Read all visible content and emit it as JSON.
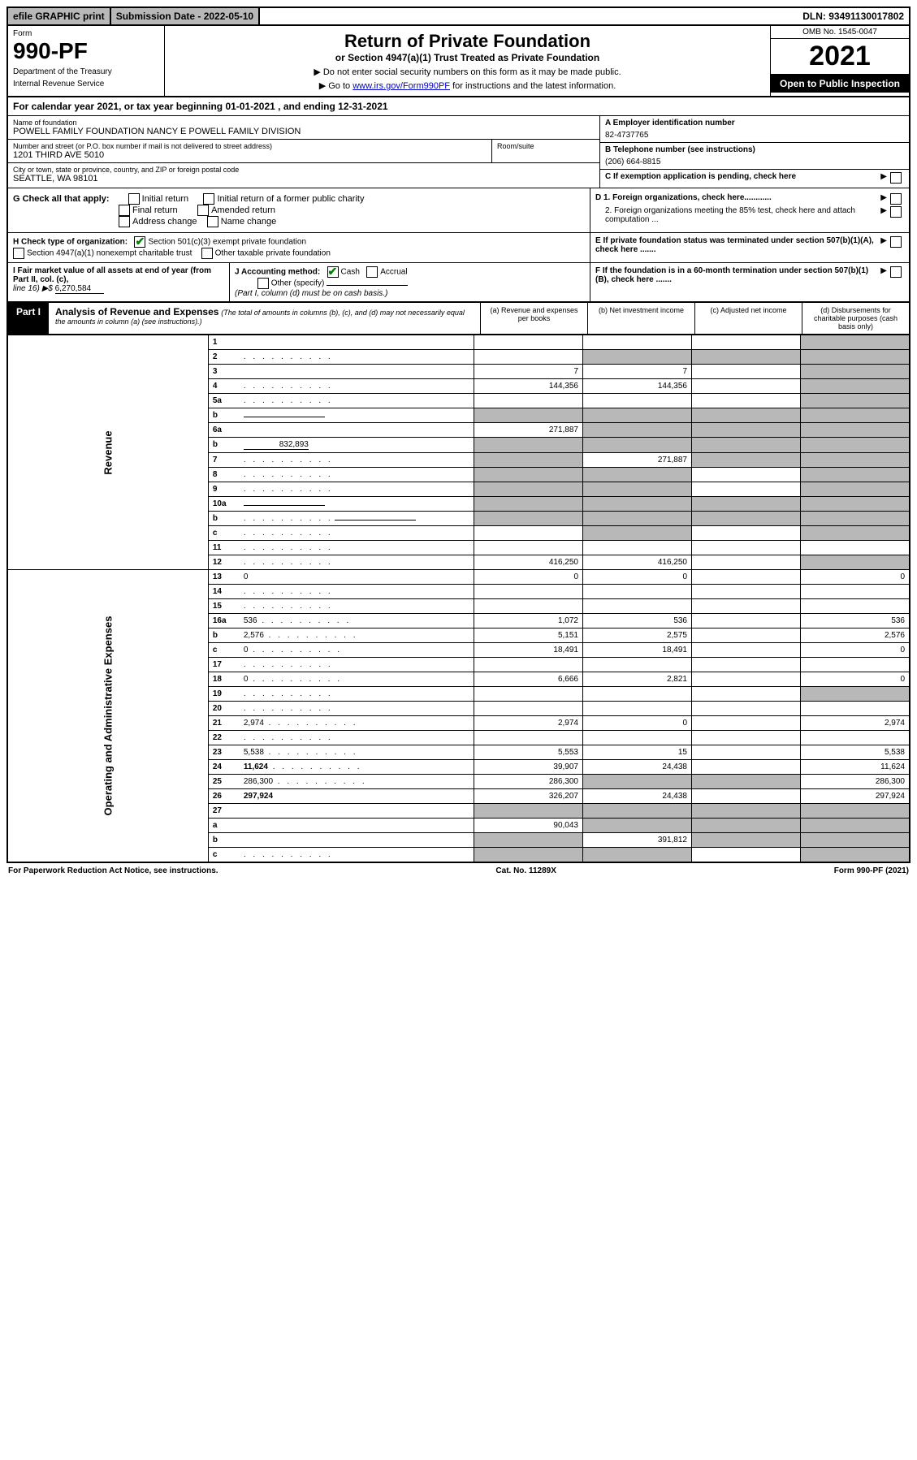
{
  "top": {
    "efile": "efile GRAPHIC print",
    "submission": "Submission Date - 2022-05-10",
    "dln": "DLN: 93491130017802"
  },
  "header": {
    "form_label": "Form",
    "form_number": "990-PF",
    "dept1": "Department of the Treasury",
    "dept2": "Internal Revenue Service",
    "title": "Return of Private Foundation",
    "subtitle": "or Section 4947(a)(1) Trust Treated as Private Foundation",
    "inst1": "▶ Do not enter social security numbers on this form as it may be made public.",
    "inst2_pre": "▶ Go to ",
    "inst2_link": "www.irs.gov/Form990PF",
    "inst2_post": " for instructions and the latest information.",
    "omb": "OMB No. 1545-0047",
    "year": "2021",
    "open_public": "Open to Public Inspection"
  },
  "cal_year": "For calendar year 2021, or tax year beginning 01-01-2021                              , and ending 12-31-2021",
  "entity": {
    "name_label": "Name of foundation",
    "name": "POWELL FAMILY FOUNDATION NANCY E POWELL FAMILY DIVISION",
    "addr_label": "Number and street (or P.O. box number if mail is not delivered to street address)",
    "addr": "1201 THIRD AVE 5010",
    "room_label": "Room/suite",
    "city_label": "City or town, state or province, country, and ZIP or foreign postal code",
    "city": "SEATTLE, WA  98101",
    "ein_label": "A Employer identification number",
    "ein": "82-4737765",
    "phone_label": "B Telephone number (see instructions)",
    "phone": "(206) 664-8815",
    "c_label": "C If exemption application is pending, check here"
  },
  "g": {
    "label": "G Check all that apply:",
    "opts": [
      "Initial return",
      "Initial return of a former public charity",
      "Final return",
      "Amended return",
      "Address change",
      "Name change"
    ]
  },
  "d": {
    "d1": "D 1. Foreign organizations, check here............",
    "d2": "2. Foreign organizations meeting the 85% test, check here and attach computation ...",
    "e": "E  If private foundation status was terminated under section 507(b)(1)(A), check here .......",
    "f": "F  If the foundation is in a 60-month termination under section 507(b)(1)(B), check here ......."
  },
  "h": {
    "label": "H Check type of organization:",
    "opt1": "Section 501(c)(3) exempt private foundation",
    "opt2": "Section 4947(a)(1) nonexempt charitable trust",
    "opt3": "Other taxable private foundation"
  },
  "i": {
    "label": "I Fair market value of all assets at end of year (from Part II, col. (c),",
    "line": "line 16) ▶$",
    "value": "6,270,584"
  },
  "j": {
    "label": "J Accounting method:",
    "cash": "Cash",
    "accrual": "Accrual",
    "other": "Other (specify)",
    "note": "(Part I, column (d) must be on cash basis.)"
  },
  "part1": {
    "label": "Part I",
    "title": "Analysis of Revenue and Expenses",
    "note": "(The total of amounts in columns (b), (c), and (d) may not necessarily equal the amounts in column (a) (see instructions).)",
    "col_a": "(a)   Revenue and expenses per books",
    "col_b": "(b)   Net investment income",
    "col_c": "(c)   Adjusted net income",
    "col_d": "(d)   Disbursements for charitable purposes (cash basis only)"
  },
  "side_labels": {
    "revenue": "Revenue",
    "opex": "Operating and Administrative Expenses"
  },
  "rows": [
    {
      "n": "1",
      "d": "",
      "a": "",
      "b": "",
      "c": "",
      "grey_cd": false
    },
    {
      "n": "2",
      "d": "",
      "dots": true,
      "a": "",
      "b": "",
      "c": "",
      "grey_all": false,
      "grey_bcd": true
    },
    {
      "n": "3",
      "d": "",
      "a": "7",
      "b": "7",
      "c": ""
    },
    {
      "n": "4",
      "d": "",
      "dots": true,
      "a": "144,356",
      "b": "144,356",
      "c": ""
    },
    {
      "n": "5a",
      "d": "",
      "dots": true,
      "a": "",
      "b": "",
      "c": ""
    },
    {
      "n": "b",
      "d": "",
      "inline": true,
      "a": "",
      "b": "",
      "c": "",
      "grey_abcd": true
    },
    {
      "n": "6a",
      "d": "",
      "a": "271,887",
      "b": "",
      "c": "",
      "grey_bcd": true,
      "grey_b": false
    },
    {
      "n": "b",
      "d": "",
      "inline_val": "832,893",
      "a": "",
      "b": "",
      "c": "",
      "grey_abcd": true
    },
    {
      "n": "7",
      "d": "",
      "dots": true,
      "a": "",
      "b": "271,887",
      "c": "",
      "grey_a": true,
      "grey_cd": true
    },
    {
      "n": "8",
      "d": "",
      "dots": true,
      "a": "",
      "b": "",
      "c": "",
      "grey_ab": true,
      "grey_d": true
    },
    {
      "n": "9",
      "d": "",
      "dots": true,
      "a": "",
      "b": "",
      "c": "",
      "grey_ab": true,
      "grey_d": true
    },
    {
      "n": "10a",
      "d": "",
      "inline": true,
      "a": "",
      "b": "",
      "c": "",
      "grey_abcd": true
    },
    {
      "n": "b",
      "d": "",
      "dots": true,
      "inline": true,
      "a": "",
      "b": "",
      "c": "",
      "grey_abcd": true
    },
    {
      "n": "c",
      "d": "",
      "dots": true,
      "a": "",
      "b": "",
      "c": "",
      "grey_b": true,
      "grey_d": true
    },
    {
      "n": "11",
      "d": "",
      "dots": true,
      "a": "",
      "b": "",
      "c": ""
    },
    {
      "n": "12",
      "d": "",
      "dots": true,
      "bold": true,
      "a": "416,250",
      "b": "416,250",
      "c": "",
      "grey_d": true
    },
    {
      "n": "13",
      "d": "0",
      "a": "0",
      "b": "0",
      "c": ""
    },
    {
      "n": "14",
      "d": "",
      "dots": true,
      "a": "",
      "b": "",
      "c": ""
    },
    {
      "n": "15",
      "d": "",
      "dots": true,
      "a": "",
      "b": "",
      "c": ""
    },
    {
      "n": "16a",
      "d": "536",
      "dots": true,
      "a": "1,072",
      "b": "536",
      "c": ""
    },
    {
      "n": "b",
      "d": "2,576",
      "dots": true,
      "a": "5,151",
      "b": "2,575",
      "c": ""
    },
    {
      "n": "c",
      "d": "0",
      "dots": true,
      "a": "18,491",
      "b": "18,491",
      "c": ""
    },
    {
      "n": "17",
      "d": "",
      "dots": true,
      "a": "",
      "b": "",
      "c": ""
    },
    {
      "n": "18",
      "d": "0",
      "dots": true,
      "a": "6,666",
      "b": "2,821",
      "c": ""
    },
    {
      "n": "19",
      "d": "",
      "dots": true,
      "a": "",
      "b": "",
      "c": "",
      "grey_d": true
    },
    {
      "n": "20",
      "d": "",
      "dots": true,
      "a": "",
      "b": "",
      "c": ""
    },
    {
      "n": "21",
      "d": "2,974",
      "dots": true,
      "a": "2,974",
      "b": "0",
      "c": ""
    },
    {
      "n": "22",
      "d": "",
      "dots": true,
      "a": "",
      "b": "",
      "c": ""
    },
    {
      "n": "23",
      "d": "5,538",
      "dots": true,
      "a": "5,553",
      "b": "15",
      "c": ""
    },
    {
      "n": "24",
      "d": "11,624",
      "dots": true,
      "bold": true,
      "a": "39,907",
      "b": "24,438",
      "c": ""
    },
    {
      "n": "25",
      "d": "286,300",
      "dots": true,
      "a": "286,300",
      "b": "",
      "c": "",
      "grey_bc": true
    },
    {
      "n": "26",
      "d": "297,924",
      "bold": true,
      "a": "326,207",
      "b": "24,438",
      "c": ""
    },
    {
      "n": "27",
      "d": "",
      "a": "",
      "b": "",
      "c": "",
      "grey_abcd": true
    },
    {
      "n": "a",
      "d": "",
      "bold": true,
      "a": "90,043",
      "b": "",
      "c": "",
      "grey_bcd": true
    },
    {
      "n": "b",
      "d": "",
      "bold": true,
      "a": "",
      "b": "391,812",
      "c": "",
      "grey_a": true,
      "grey_cd": true
    },
    {
      "n": "c",
      "d": "",
      "dots": true,
      "bold": true,
      "a": "",
      "b": "",
      "c": "",
      "grey_ab": true,
      "grey_d": true
    }
  ],
  "footer": {
    "left": "For Paperwork Reduction Act Notice, see instructions.",
    "mid": "Cat. No. 11289X",
    "right": "Form 990-PF (2021)"
  },
  "colors": {
    "grey": "#b8b8b8",
    "black": "#000000",
    "link": "#0000cc",
    "check": "#008000"
  }
}
